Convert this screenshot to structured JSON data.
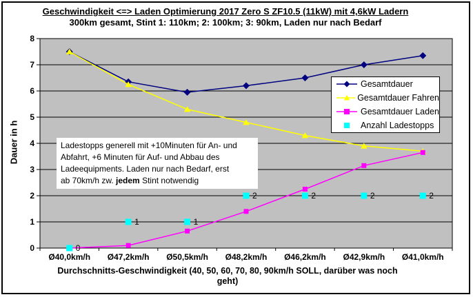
{
  "chart_data": {
    "type": "line",
    "title": "Geschwindigkeit <=> Laden Optimierung 2017 Zero S ZF10.5 (11kW) mit 4,6kW Ladern",
    "subtitle": "300km gesamt, Stint 1: 110km; 2: 100km; 3: 90km, Laden nur nach Bedarf",
    "ylabel": "Dauer in h",
    "xlabel": "Durchschnitts-Geschwindigkeit (40, 50, 60, 70, 80, 90km/h SOLL, darüber was noch geht)",
    "xlabel_lines": [
      "Durchschnitts-Geschwindigkeit (40, 50, 60, 70, 80, 90km/h SOLL, darüber was noch",
      "geht)"
    ],
    "categories": [
      "Ø40,0km/h",
      "Ø47,2km/h",
      "Ø50,5km/h",
      "Ø48,2km/h",
      "Ø46,2km/h",
      "Ø42,9km/h",
      "Ø41,0km/h"
    ],
    "ylim": [
      0,
      8
    ],
    "ytick_step": 1,
    "grid": true,
    "plot_bg": "#C0C0C0",
    "grid_color": "#000000",
    "legend_position": "inside-right",
    "series": [
      {
        "name": "Gesamtdauer",
        "color": "#000080",
        "marker": "diamond",
        "line": true,
        "values": [
          7.5,
          6.35,
          5.95,
          6.2,
          6.5,
          7.0,
          7.35
        ]
      },
      {
        "name": "Gesamtdauer Fahren",
        "color": "#FFFF00",
        "marker": "triangle",
        "line": true,
        "values": [
          7.5,
          6.25,
          5.3,
          4.8,
          4.3,
          3.9,
          3.7
        ]
      },
      {
        "name": "Gesamtdauer Laden",
        "color": "#FF00FF",
        "marker": "square",
        "line": true,
        "values": [
          0,
          0.1,
          0.65,
          1.4,
          2.25,
          3.15,
          3.65
        ]
      },
      {
        "name": "Anzahl Ladestopps",
        "color": "#00FFFF",
        "marker": "square",
        "line": false,
        "values": [
          0,
          1,
          1,
          2,
          2,
          2,
          2
        ],
        "data_labels": true
      }
    ],
    "annotation": {
      "lines": [
        "Ladestopps generell mit +10Minuten für An- und",
        "Abfahrt, +6 Minuten für Auf- und Abbau des",
        "Ladeequipments. Laden nur nach Bedarf, erst"
      ],
      "last_line": {
        "before": "ab 70km/h zw. ",
        "bold": "jedem",
        "after": " Stint notwendig"
      }
    }
  }
}
